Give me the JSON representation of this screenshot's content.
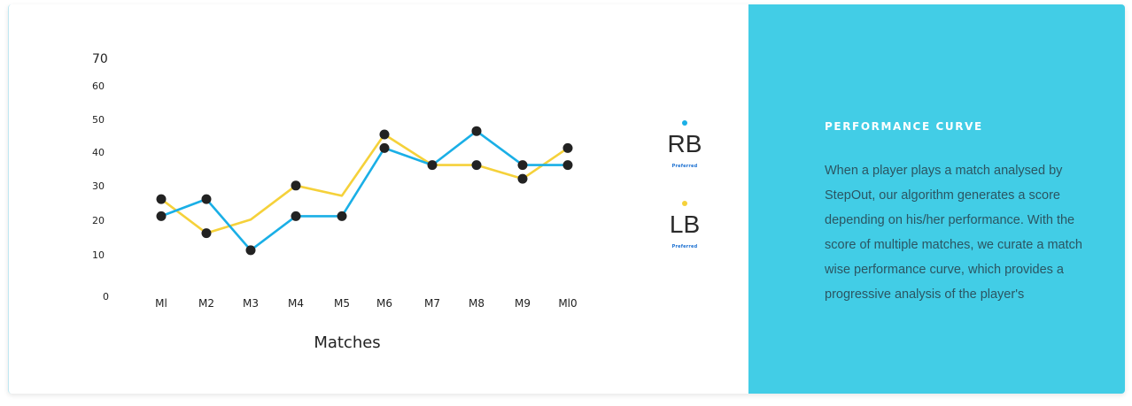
{
  "chart_data": {
    "type": "line",
    "categories": [
      "M1",
      "M2",
      "M3",
      "M4",
      "M5",
      "M6",
      "M7",
      "M8",
      "M9",
      "M10"
    ],
    "category_labels": [
      "Ml",
      "M2",
      "M3",
      "M4",
      "M5",
      "M6",
      "M7",
      "M8",
      "M9",
      "Ml0"
    ],
    "series": [
      {
        "name": "RB",
        "color": "#1aafe6",
        "values": [
          26,
          31,
          16,
          26,
          26,
          46,
          41,
          51,
          41,
          41
        ]
      },
      {
        "name": "LB",
        "color": "#f5d13a",
        "values": [
          31,
          21,
          25,
          35,
          32,
          50,
          41,
          41,
          37,
          46
        ]
      }
    ],
    "marker_points": [
      {
        "x": "M1",
        "y": 26
      },
      {
        "x": "M1",
        "y": 31
      },
      {
        "x": "M2",
        "y": 31
      },
      {
        "x": "M2",
        "y": 21
      },
      {
        "x": "M3",
        "y": 16
      },
      {
        "x": "M4",
        "y": 26
      },
      {
        "x": "M4",
        "y": 35
      },
      {
        "x": "M5",
        "y": 26
      },
      {
        "x": "M6",
        "y": 46
      },
      {
        "x": "M6",
        "y": 50
      },
      {
        "x": "M7",
        "y": 41
      },
      {
        "x": "M8",
        "y": 51
      },
      {
        "x": "M8",
        "y": 41
      },
      {
        "x": "M9",
        "y": 41
      },
      {
        "x": "M9",
        "y": 37
      },
      {
        "x": "M10",
        "y": 41
      },
      {
        "x": "M10",
        "y": 46
      }
    ],
    "marker_color": "#222222",
    "yticks": [
      "0",
      "10",
      "20",
      "30",
      "40",
      "50",
      "60",
      "70"
    ],
    "ytick_values": [
      0,
      10,
      20,
      30,
      40,
      50,
      60,
      70
    ],
    "xlabel": "Matches",
    "ylabel": "",
    "ylim": [
      0,
      70
    ],
    "grid": false,
    "legend_position": "right"
  },
  "legend": [
    {
      "name": "RB",
      "subtitle": "Preferred",
      "color": "#1aafe6"
    },
    {
      "name": "LB",
      "subtitle": "Preferred",
      "color": "#f5d13a"
    }
  ],
  "info": {
    "title": "PERFORMANCE CURVE",
    "body": "When a player plays a match analysed by StepOut, our algorithm generates a score depending on his/her performance. With the score of multiple matches, we curate a match wise performance curve, which provides a progressive analysis of the player's performance.",
    "panel_color": "#42cde6"
  }
}
